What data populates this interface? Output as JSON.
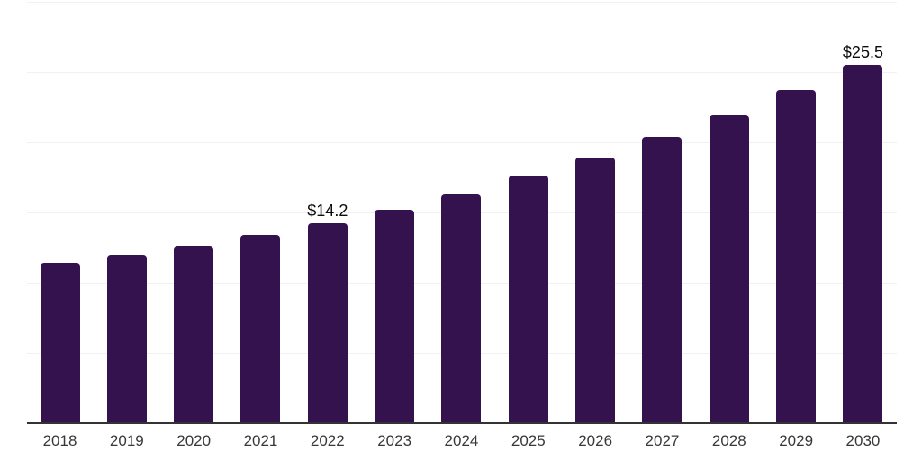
{
  "chart_data": {
    "type": "bar",
    "categories": [
      "2018",
      "2019",
      "2020",
      "2021",
      "2022",
      "2023",
      "2024",
      "2025",
      "2026",
      "2027",
      "2028",
      "2029",
      "2030"
    ],
    "values": [
      11.4,
      12.0,
      12.6,
      13.4,
      14.2,
      15.2,
      16.3,
      17.6,
      18.9,
      20.4,
      21.9,
      23.7,
      25.5
    ],
    "annotations": [
      {
        "category": "2022",
        "label": "$14.2"
      },
      {
        "category": "2030",
        "label": "$25.5"
      }
    ],
    "title": "",
    "xlabel": "",
    "ylabel": "",
    "ylim": [
      0,
      30
    ],
    "gridline_step": 5,
    "grid": true,
    "legend": false,
    "y_axis_labels_visible": false
  },
  "colors": {
    "bar": "#34124E",
    "gridline": "#f1f1f3",
    "axis_line": "#333333",
    "tick_label": "#383838",
    "data_label": "#0b0b0b",
    "background": "#ffffff"
  }
}
